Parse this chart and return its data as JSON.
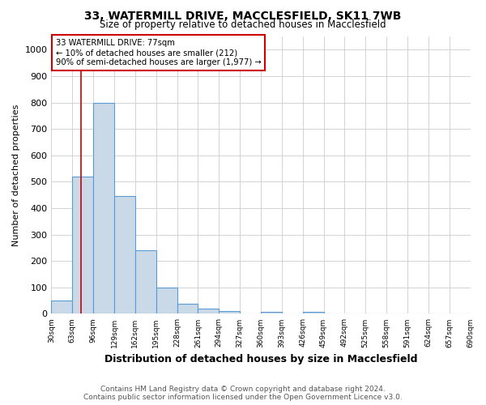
{
  "title1": "33, WATERMILL DRIVE, MACCLESFIELD, SK11 7WB",
  "title2": "Size of property relative to detached houses in Macclesfield",
  "xlabel": "Distribution of detached houses by size in Macclesfield",
  "ylabel": "Number of detached properties",
  "footer1": "Contains HM Land Registry data © Crown copyright and database right 2024.",
  "footer2": "Contains public sector information licensed under the Open Government Licence v3.0.",
  "annotation_line1": "33 WATERMILL DRIVE: 77sqm",
  "annotation_line2": "← 10% of detached houses are smaller (212)",
  "annotation_line3": "90% of semi-detached houses are larger (1,977) →",
  "bar_edges": [
    30,
    63,
    96,
    129,
    162,
    195,
    228,
    261,
    294,
    327,
    360,
    393,
    426,
    459,
    492,
    525,
    558,
    591,
    624,
    657,
    690
  ],
  "bar_heights": [
    50,
    520,
    800,
    445,
    240,
    100,
    37,
    20,
    12,
    0,
    8,
    0,
    8,
    0,
    0,
    0,
    0,
    0,
    0,
    0
  ],
  "bar_color": "#c9d9e8",
  "bar_edgecolor": "#5b9bd5",
  "redline_x": 77,
  "redline_color": "#cc0000",
  "annotation_box_color": "#cc0000",
  "background_color": "#ffffff",
  "grid_color": "#cccccc",
  "ylim": [
    0,
    1050
  ],
  "yticks": [
    0,
    100,
    200,
    300,
    400,
    500,
    600,
    700,
    800,
    900,
    1000
  ]
}
